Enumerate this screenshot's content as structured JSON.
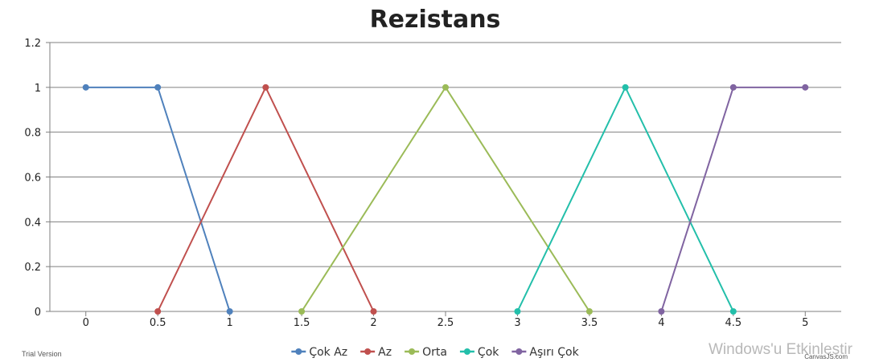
{
  "chart_data": {
    "type": "line",
    "title": "Rezistans",
    "xlabel": "",
    "ylabel": "",
    "xlim": [
      -0.25,
      5.25
    ],
    "ylim": [
      0,
      1.2
    ],
    "x_ticks": [
      0,
      0.5,
      1,
      1.5,
      2,
      2.5,
      3,
      3.5,
      4,
      4.5,
      5
    ],
    "y_ticks": [
      0,
      0.2,
      0.4,
      0.6,
      0.8,
      1,
      1.2
    ],
    "grid": "horizontal",
    "legend_position": "bottom",
    "series": [
      {
        "name": "Çok Az",
        "color": "#4F81BC",
        "points": [
          [
            0,
            1
          ],
          [
            0.5,
            1
          ],
          [
            1,
            0
          ]
        ]
      },
      {
        "name": "Az",
        "color": "#C0504E",
        "points": [
          [
            0.5,
            0
          ],
          [
            1.25,
            1
          ],
          [
            2,
            0
          ]
        ]
      },
      {
        "name": "Orta",
        "color": "#9BBB58",
        "points": [
          [
            1.5,
            0
          ],
          [
            2.5,
            1
          ],
          [
            3.5,
            0
          ]
        ]
      },
      {
        "name": "Çok",
        "color": "#23BFAA",
        "points": [
          [
            3,
            0
          ],
          [
            3.75,
            1
          ],
          [
            4.5,
            0
          ]
        ]
      },
      {
        "name": "Aşırı Çok",
        "color": "#8064A1",
        "points": [
          [
            4,
            0
          ],
          [
            4.5,
            1
          ],
          [
            5,
            1
          ]
        ]
      }
    ]
  },
  "footer": {
    "trial_label": "Trial Version",
    "credit_label": "CanvasJS.com",
    "watermark": "Windows'u Etkinleştir"
  }
}
